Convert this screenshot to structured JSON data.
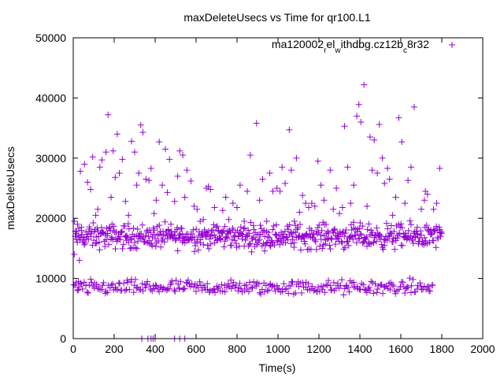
{
  "chart_data": {
    "type": "scatter",
    "title": "maxDeleteUsecs vs Time for qr100.L1",
    "xlabel": "Time(s)",
    "ylabel": "maxDeleteUsecs",
    "xlim": [
      0,
      2000
    ],
    "ylim": [
      0,
      50000
    ],
    "xticks": [
      0,
      200,
      400,
      600,
      800,
      1000,
      1200,
      1400,
      1600,
      1800,
      2000
    ],
    "yticks": [
      0,
      10000,
      20000,
      30000,
      40000,
      50000
    ],
    "legend": {
      "position": "top-right",
      "parts": [
        {
          "text": "ma120002",
          "sub": false
        },
        {
          "text": "r",
          "sub": true
        },
        {
          "text": "el",
          "sub": false
        },
        {
          "text": "w",
          "sub": true
        },
        {
          "text": "ithdbg.cz12b",
          "sub": false
        },
        {
          "text": "c",
          "sub": true
        },
        {
          "text": "8r32",
          "sub": false
        }
      ]
    },
    "marker": "+",
    "color": "#9400d3",
    "series": [
      {
        "name": "ma120002_rel_withdbg.cz12b_c8r32",
        "points": [
          [
            5,
            19500
          ],
          [
            5,
            14000
          ],
          [
            10,
            17000
          ],
          [
            15,
            16500
          ],
          [
            20,
            8000
          ],
          [
            25,
            9500
          ],
          [
            30,
            13000
          ],
          [
            35,
            27800
          ],
          [
            40,
            18500
          ],
          [
            55,
            29000
          ],
          [
            70,
            26000
          ],
          [
            85,
            24800
          ],
          [
            95,
            30200
          ],
          [
            110,
            20500
          ],
          [
            120,
            21500
          ],
          [
            130,
            28500
          ],
          [
            140,
            29700
          ],
          [
            160,
            31000
          ],
          [
            170,
            37200
          ],
          [
            185,
            23500
          ],
          [
            195,
            31200
          ],
          [
            205,
            26800
          ],
          [
            215,
            34000
          ],
          [
            225,
            27500
          ],
          [
            240,
            29800
          ],
          [
            255,
            22800
          ],
          [
            270,
            20500
          ],
          [
            285,
            32800
          ],
          [
            300,
            31000
          ],
          [
            310,
            25500
          ],
          [
            320,
            27500
          ],
          [
            330,
            35500
          ],
          [
            340,
            34300
          ],
          [
            355,
            26500
          ],
          [
            370,
            26300
          ],
          [
            380,
            28300
          ],
          [
            395,
            20800
          ],
          [
            405,
            23000
          ],
          [
            420,
            32700
          ],
          [
            435,
            25500
          ],
          [
            450,
            31500
          ],
          [
            460,
            24300
          ],
          [
            470,
            29800
          ],
          [
            480,
            17800
          ],
          [
            495,
            22800
          ],
          [
            510,
            27000
          ],
          [
            520,
            31200
          ],
          [
            535,
            30500
          ],
          [
            545,
            23500
          ],
          [
            555,
            28000
          ],
          [
            575,
            26200
          ],
          [
            590,
            22000
          ],
          [
            605,
            21500
          ],
          [
            620,
            19500
          ],
          [
            635,
            19800
          ],
          [
            650,
            25000
          ],
          [
            660,
            25300
          ],
          [
            670,
            24800
          ],
          [
            690,
            21800
          ],
          [
            710,
            18000
          ],
          [
            730,
            21300
          ],
          [
            745,
            23500
          ],
          [
            760,
            19800
          ],
          [
            780,
            22500
          ],
          [
            800,
            21800
          ],
          [
            815,
            25500
          ],
          [
            835,
            19500
          ],
          [
            850,
            24500
          ],
          [
            865,
            30500
          ],
          [
            880,
            18800
          ],
          [
            895,
            35800
          ],
          [
            910,
            23000
          ],
          [
            925,
            26500
          ],
          [
            945,
            19500
          ],
          [
            960,
            27500
          ],
          [
            975,
            24500
          ],
          [
            995,
            25000
          ],
          [
            1010,
            24500
          ],
          [
            1020,
            28500
          ],
          [
            1035,
            25800
          ],
          [
            1055,
            34700
          ],
          [
            1065,
            28000
          ],
          [
            1080,
            19500
          ],
          [
            1090,
            30000
          ],
          [
            1105,
            21000
          ],
          [
            1120,
            23800
          ],
          [
            1135,
            22500
          ],
          [
            1150,
            21800
          ],
          [
            1165,
            22500
          ],
          [
            1180,
            22000
          ],
          [
            1195,
            29500
          ],
          [
            1210,
            25500
          ],
          [
            1225,
            23000
          ],
          [
            1235,
            19000
          ],
          [
            1255,
            28000
          ],
          [
            1270,
            21500
          ],
          [
            1285,
            25000
          ],
          [
            1300,
            20800
          ],
          [
            1315,
            21800
          ],
          [
            1325,
            35300
          ],
          [
            1340,
            28500
          ],
          [
            1355,
            22500
          ],
          [
            1370,
            25500
          ],
          [
            1385,
            37000
          ],
          [
            1395,
            38900
          ],
          [
            1405,
            36000
          ],
          [
            1420,
            42200
          ],
          [
            1435,
            22000
          ],
          [
            1450,
            33500
          ],
          [
            1460,
            28000
          ],
          [
            1470,
            33000
          ],
          [
            1485,
            27500
          ],
          [
            1495,
            35600
          ],
          [
            1510,
            30000
          ],
          [
            1520,
            25800
          ],
          [
            1535,
            28300
          ],
          [
            1545,
            26500
          ],
          [
            1560,
            20500
          ],
          [
            1575,
            23500
          ],
          [
            1590,
            36700
          ],
          [
            1605,
            32700
          ],
          [
            1620,
            22500
          ],
          [
            1635,
            26300
          ],
          [
            1650,
            28500
          ],
          [
            1665,
            38500
          ],
          [
            1680,
            18500
          ],
          [
            1700,
            21500
          ],
          [
            1715,
            23000
          ],
          [
            1720,
            24500
          ],
          [
            1730,
            24000
          ],
          [
            1760,
            21500
          ],
          [
            1775,
            22500
          ],
          [
            1790,
            28300
          ],
          [
            1800,
            17500
          ]
        ]
      }
    ],
    "bands": [
      {
        "kind": "main",
        "x_start": 10,
        "x_end": 1800,
        "x_step": 3,
        "y_center": 17000,
        "y_spread": 3000
      },
      {
        "kind": "low",
        "x_start": 5,
        "x_end": 1760,
        "x_step": 6,
        "y_center": 8500,
        "y_spread": 1800
      }
    ],
    "zero_points": [
      335,
      365,
      380,
      390,
      400,
      495,
      520,
      545
    ],
    "grid": false
  }
}
